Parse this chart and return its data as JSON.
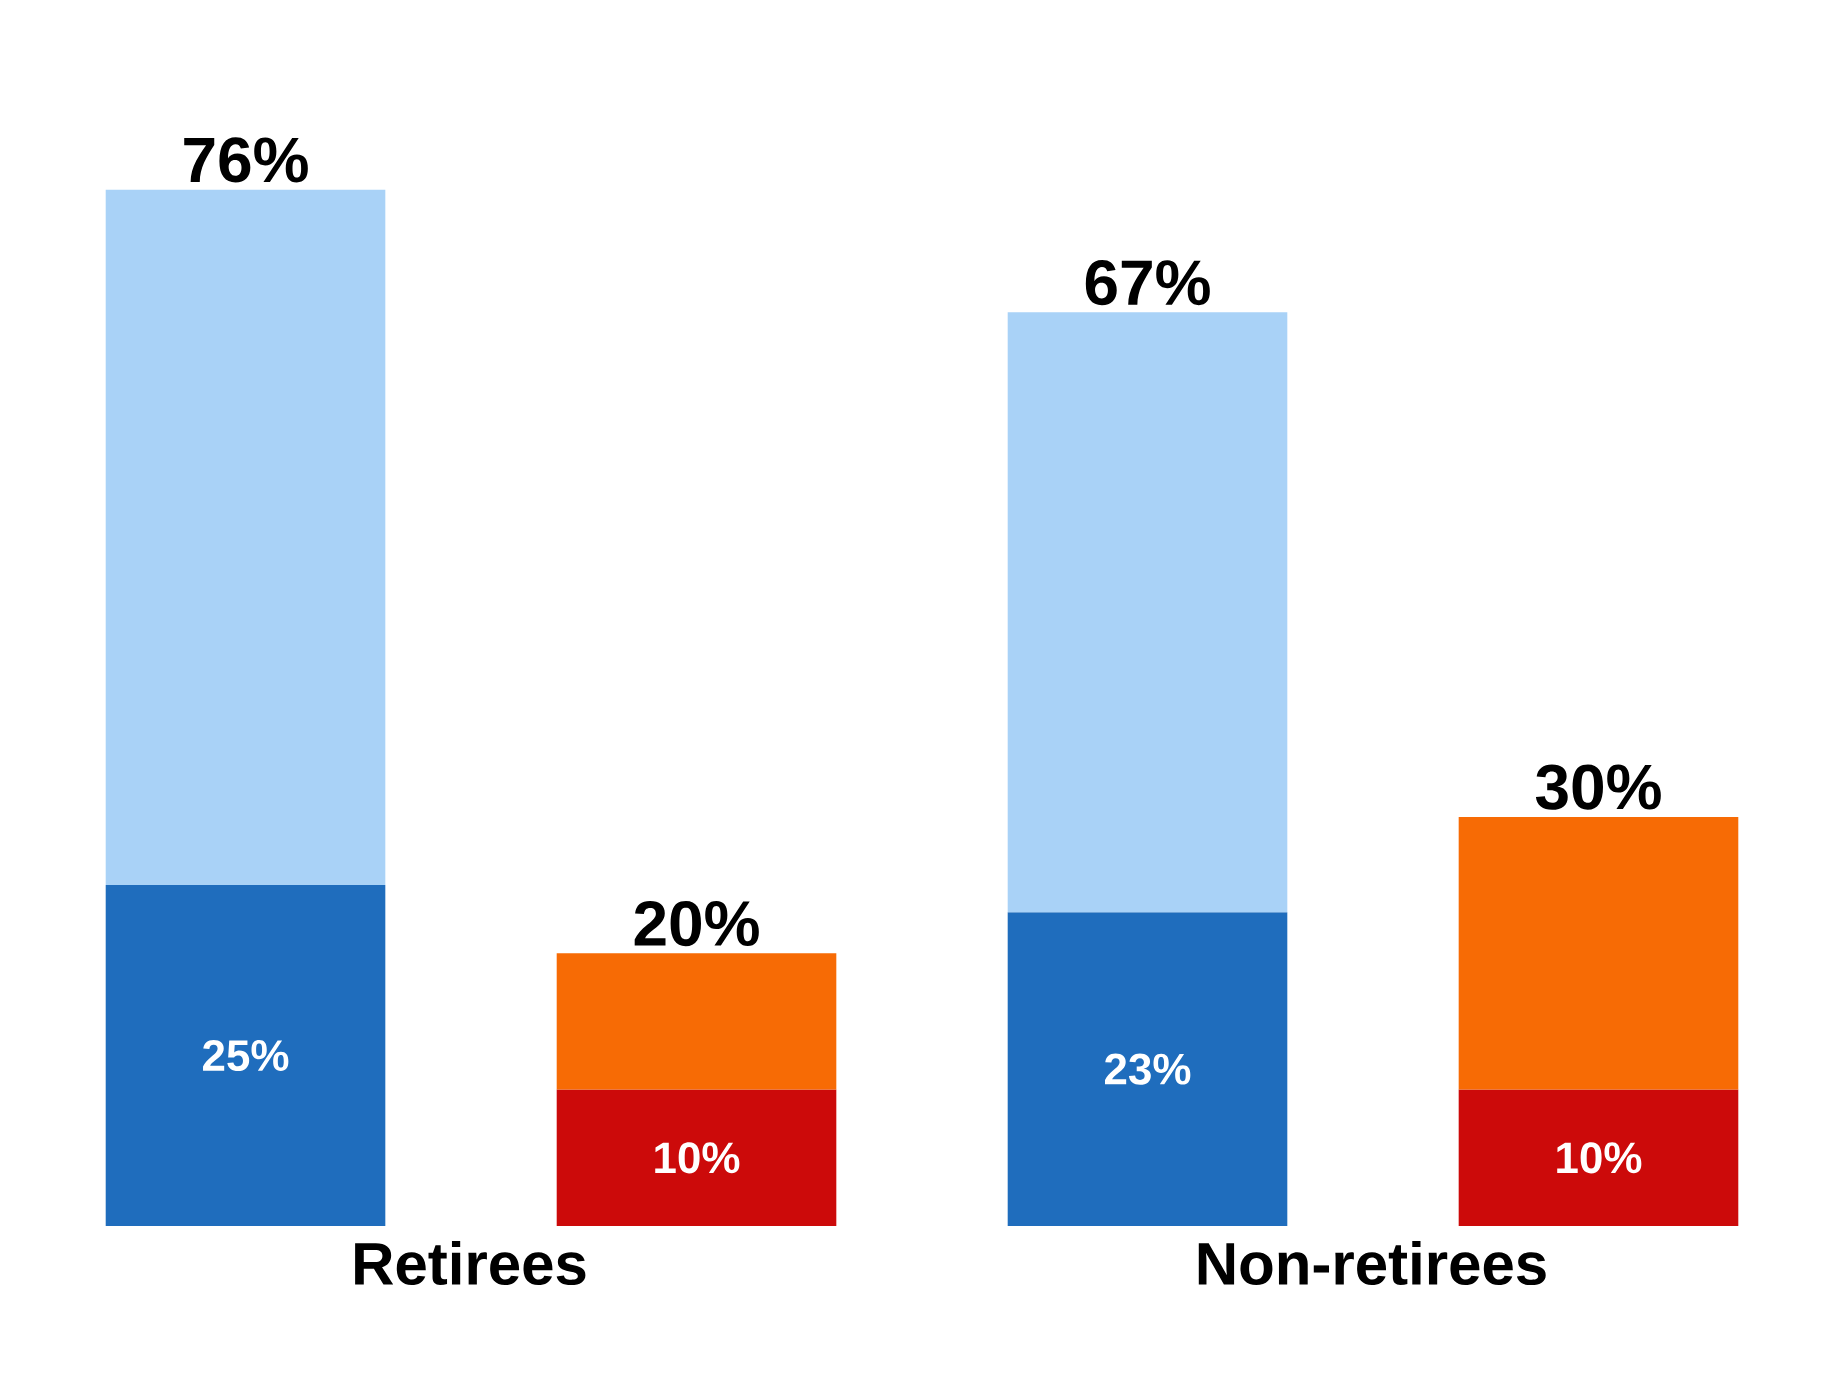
{
  "chart_data": {
    "type": "bar",
    "stacked": true,
    "categories": [
      "Retirees",
      null,
      "Non-retirees",
      null
    ],
    "series": [
      {
        "colors": [
          "#1f6dbd",
          "#cc0a0a",
          "#1f6dbd",
          "#cc0a0a"
        ],
        "values": [
          25,
          10,
          23,
          10
        ],
        "value_labels": [
          "25%",
          "10%",
          "23%",
          "10%"
        ]
      },
      {
        "colors": [
          "#a9d2f7",
          "#f76b05",
          "#a9d2f7",
          "#f76b05"
        ],
        "values": [
          51,
          10,
          44,
          20
        ]
      }
    ],
    "totals": [
      "76%",
      "20%",
      "67%",
      "30%"
    ]
  }
}
